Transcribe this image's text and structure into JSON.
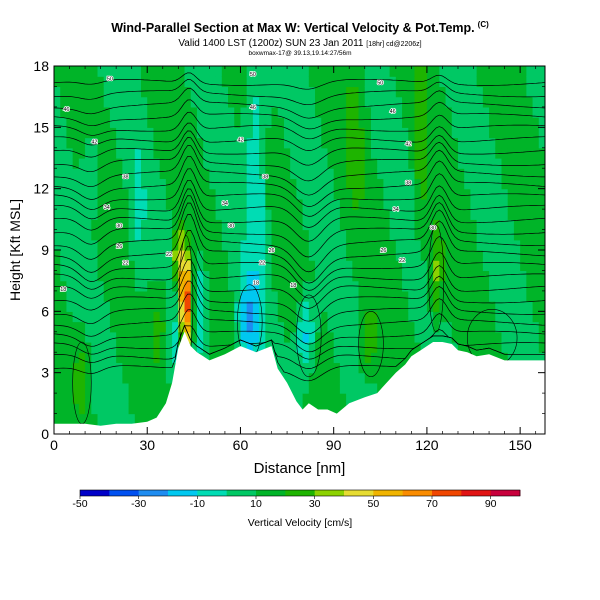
{
  "header": {
    "title": "Wind-Parallel Section at Max W: Vertical Velocity & Pot.Temp.",
    "copyright": "(C)",
    "valid": "Valid 1400 LST (1200z) SUN 23 Jan 2011",
    "valid_tag": "[18hr] cd@2206z]",
    "source": "boxwmax-17@ 39.13,19.14:27/56m"
  },
  "chart_data": {
    "type": "heatmap",
    "title": "Wind-Parallel Section at Max W: Vertical Velocity & Pot.Temp.",
    "xlabel": "Distance [nm]",
    "ylabel": "Height [Kft MSL]",
    "xlim": [
      0,
      158
    ],
    "ylim": [
      0,
      18
    ],
    "x_ticks": [
      "0",
      "30",
      "60",
      "90",
      "120",
      "150"
    ],
    "y_ticks": [
      "0",
      "3",
      "6",
      "9",
      "12",
      "15",
      "18"
    ],
    "colorbar": {
      "title": "Vertical Velocity [cm/s]",
      "labels": [
        "-50",
        "-30",
        "-10",
        "10",
        "30",
        "50",
        "70",
        "90"
      ],
      "levels": [
        -50,
        -40,
        -30,
        -20,
        -10,
        0,
        10,
        20,
        30,
        40,
        50,
        60,
        70,
        80,
        90,
        100
      ],
      "colors": [
        "#0000c8",
        "#0050f0",
        "#1e8cf0",
        "#00c8f0",
        "#00dcb4",
        "#00c864",
        "#00b428",
        "#1eb400",
        "#8cd200",
        "#e6dc32",
        "#f0b400",
        "#fa8c00",
        "#f04600",
        "#e11414",
        "#c8003c"
      ]
    },
    "terrain_kft": {
      "x": [
        0,
        5,
        10,
        15,
        20,
        25,
        30,
        33,
        36,
        38,
        40,
        42,
        44,
        46,
        48,
        50,
        55,
        60,
        65,
        70,
        72,
        75,
        78,
        80,
        82,
        85,
        88,
        91,
        95,
        100,
        104,
        107,
        110,
        113,
        115,
        118,
        120,
        122,
        125,
        128,
        130,
        133,
        136,
        140,
        145,
        150,
        155,
        158
      ],
      "h": [
        0.5,
        0.5,
        0.5,
        0.4,
        0.5,
        0.5,
        0.6,
        0.8,
        1.5,
        2.5,
        4.2,
        5.0,
        4.3,
        4.0,
        3.8,
        3.6,
        3.9,
        4.3,
        4.0,
        4.3,
        3.2,
        2.5,
        1.6,
        1.2,
        1.5,
        1.2,
        1.2,
        1.0,
        1.5,
        1.8,
        2.0,
        2.5,
        3.0,
        3.4,
        3.8,
        4.1,
        4.3,
        4.5,
        4.5,
        4.4,
        4.1,
        4.0,
        3.8,
        3.9,
        3.6,
        3.6,
        3.6,
        3.6
      ]
    },
    "theta_labels": [
      {
        "x": 18,
        "y": 17.4,
        "text": "50"
      },
      {
        "x": 64,
        "y": 17.6,
        "text": "50"
      },
      {
        "x": 105,
        "y": 17.2,
        "text": "50"
      },
      {
        "x": 4,
        "y": 15.9,
        "text": "46"
      },
      {
        "x": 64,
        "y": 16.0,
        "text": "46"
      },
      {
        "x": 109,
        "y": 15.8,
        "text": "46"
      },
      {
        "x": 13,
        "y": 14.3,
        "text": "42"
      },
      {
        "x": 60,
        "y": 14.4,
        "text": "42"
      },
      {
        "x": 114,
        "y": 14.2,
        "text": "42"
      },
      {
        "x": 23,
        "y": 12.6,
        "text": "38"
      },
      {
        "x": 68,
        "y": 12.6,
        "text": "38"
      },
      {
        "x": 114,
        "y": 12.3,
        "text": "38"
      },
      {
        "x": 17,
        "y": 11.1,
        "text": "34"
      },
      {
        "x": 55,
        "y": 11.3,
        "text": "34"
      },
      {
        "x": 110,
        "y": 11.0,
        "text": "34"
      },
      {
        "x": 21,
        "y": 10.2,
        "text": "30"
      },
      {
        "x": 57,
        "y": 10.2,
        "text": "30"
      },
      {
        "x": 122,
        "y": 10.1,
        "text": "30"
      },
      {
        "x": 21,
        "y": 9.2,
        "text": "26"
      },
      {
        "x": 70,
        "y": 9.0,
        "text": "26"
      },
      {
        "x": 106,
        "y": 9.0,
        "text": "26"
      },
      {
        "x": 23,
        "y": 8.4,
        "text": "22"
      },
      {
        "x": 37,
        "y": 8.8,
        "text": "22"
      },
      {
        "x": 67,
        "y": 8.4,
        "text": "22"
      },
      {
        "x": 112,
        "y": 8.5,
        "text": "22"
      },
      {
        "x": 3,
        "y": 7.1,
        "text": "18"
      },
      {
        "x": 65,
        "y": 7.4,
        "text": "18"
      },
      {
        "x": 77,
        "y": 7.3,
        "text": "18"
      }
    ]
  }
}
